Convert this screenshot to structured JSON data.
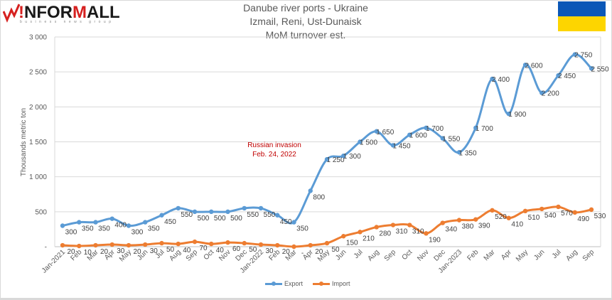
{
  "header": {
    "logo_text_red_1": "!",
    "logo_text_black": "NFOR",
    "logo_text_red_2": "M",
    "logo_text_black_2": "ALL",
    "logo_subtitle": "business news group",
    "title_line_1": "Danube river ports - Ukraine",
    "title_line_2": "Izmail, Reni, Ust-Dunaisk",
    "title_line_3": "MoM turnover est.",
    "flag": {
      "top_color": "#0B57B7",
      "bottom_color": "#FDD500"
    }
  },
  "annotation": {
    "line_1": "Russian invasion",
    "line_2": "Feb. 24, 2022",
    "color": "#C00000"
  },
  "legend": [
    {
      "name": "Export",
      "color": "#5B9BD5"
    },
    {
      "name": "Import",
      "color": "#ED7D31"
    }
  ],
  "chart_data": {
    "type": "line",
    "title": "Danube river ports - Ukraine / Izmail, Reni, Ust-Dunaisk / MoM turnover est.",
    "xlabel": "",
    "ylabel": "Thousands metric ton",
    "ylim": [
      0,
      3000
    ],
    "yticks": [
      "-",
      "500",
      "1 000",
      "1 500",
      "2 000",
      "2 500",
      "3 000"
    ],
    "grid": true,
    "legend_position": "bottom",
    "categories": [
      "Jan-2021",
      "Feb",
      "Mar",
      "Apr",
      "May",
      "Jun",
      "Jul",
      "Aug",
      "Sep",
      "Oct",
      "Nov",
      "Dec",
      "Jan-2022",
      "Feb",
      "Mar",
      "Apr",
      "May",
      "Jun",
      "Jul",
      "Aug",
      "Sep",
      "Oct",
      "Nov",
      "Dec",
      "Jan-2023",
      "Feb",
      "Mar",
      "Apr",
      "May",
      "Jun",
      "Jul",
      "Aug",
      "Sep"
    ],
    "series": [
      {
        "name": "Export",
        "color": "#5B9BD5",
        "values": [
          300,
          350,
          350,
          400,
          300,
          350,
          450,
          550,
          500,
          500,
          500,
          550,
          550,
          450,
          350,
          800,
          1250,
          1300,
          1500,
          1650,
          1450,
          1600,
          1700,
          1550,
          1350,
          1700,
          2400,
          1900,
          2600,
          2200,
          2450,
          2750,
          2550
        ],
        "labels": [
          "300",
          "350",
          "350",
          "400",
          "300",
          "350",
          "450",
          "550",
          "500",
          "500",
          "500",
          "550",
          "550",
          "450",
          "350",
          "800",
          "1 250",
          "1 300",
          "1 500",
          "1 650",
          "1 450",
          "1 600",
          "1 700",
          "1 550",
          "1 350",
          "1 700",
          "2 400",
          "1 900",
          "2 600",
          "2 200",
          "2 450",
          "2 750",
          "2 550"
        ]
      },
      {
        "name": "Import",
        "color": "#ED7D31",
        "values": [
          20,
          10,
          20,
          30,
          20,
          30,
          50,
          40,
          70,
          40,
          60,
          50,
          30,
          20,
          0,
          20,
          50,
          150,
          210,
          280,
          310,
          310,
          190,
          340,
          380,
          390,
          520,
          410,
          510,
          540,
          570,
          490,
          530
        ],
        "labels": [
          "20",
          "10",
          "20",
          "30",
          "20",
          "30",
          "50",
          "40",
          "70",
          "40",
          "60",
          "50",
          "30",
          "20",
          "-",
          "20",
          "50",
          "150",
          "210",
          "280",
          "310",
          "310",
          "190",
          "340",
          "380",
          "390",
          "520",
          "410",
          "510",
          "540",
          "570",
          "490",
          "530"
        ]
      }
    ],
    "annotations": [
      {
        "text": "Russian invasion Feb. 24, 2022",
        "x": "Feb-2022"
      }
    ]
  }
}
